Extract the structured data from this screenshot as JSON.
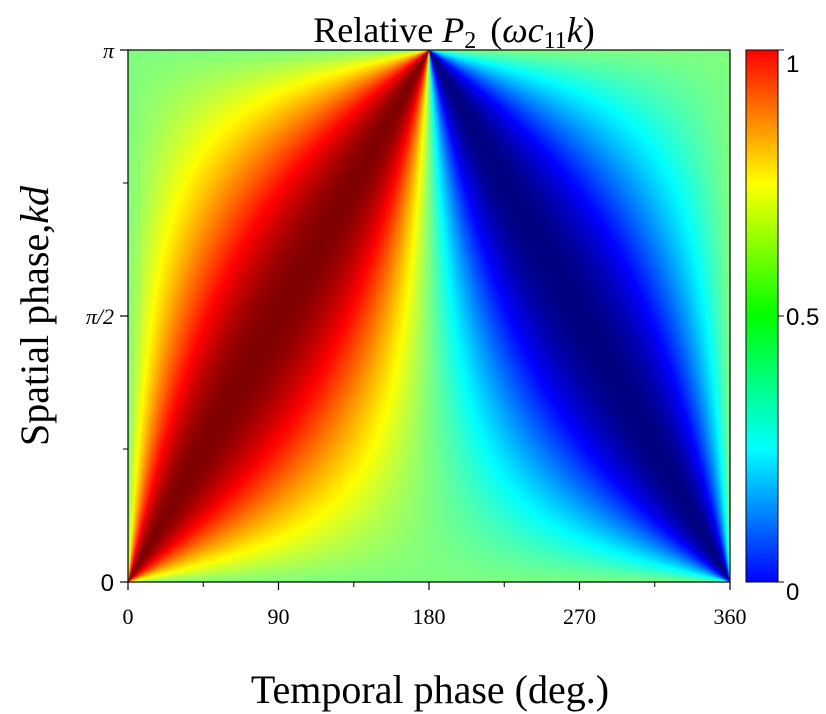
{
  "chart_data": {
    "type": "heatmap",
    "title": {
      "prefix": "Relative ",
      "symbol": "P",
      "symbol_sub": "2",
      "paren_open": "(",
      "omega": "ω",
      "c": "c",
      "c_sub": "11",
      "k": "k",
      "paren_close": ")"
    },
    "xlabel": "Temporal phase (deg.)",
    "ylabel": {
      "text": "Spatial phase,",
      "symbol": "kd"
    },
    "xlim": [
      0,
      360
    ],
    "ylim": [
      0,
      3.14159
    ],
    "x_ticks": [
      {
        "value": 0,
        "label": "0"
      },
      {
        "value": 90,
        "label": "90"
      },
      {
        "value": 180,
        "label": "180"
      },
      {
        "value": 270,
        "label": "270"
      },
      {
        "value": 360,
        "label": "360"
      }
    ],
    "x_minor_ticks": [
      45,
      135,
      225,
      315
    ],
    "y_ticks": [
      {
        "value": 0,
        "label": "0"
      },
      {
        "value": 1.5708,
        "label": "π/2"
      },
      {
        "value": 3.14159,
        "label": "π"
      }
    ],
    "y_minor_ticks": [
      0.7854,
      2.3562
    ],
    "colorbar": {
      "min": 0,
      "max": 1,
      "ticks": [
        {
          "value": 0,
          "label": "0"
        },
        {
          "value": 0.5,
          "label": "0.5"
        },
        {
          "value": 1,
          "label": "1"
        }
      ],
      "colormap": "jet",
      "colors": [
        "#0000ff",
        "#0080ff",
        "#00ffff",
        "#00ff80",
        "#00ff00",
        "#80ff00",
        "#ffff00",
        "#ff8000",
        "#ff0000"
      ]
    },
    "value_function": "0.5 * (1 + sin(kd) * sin(temporal_phase) / (1 - cos(kd) * cos(temporal_phase)))",
    "grid": false,
    "legend": "colorbar-right"
  }
}
